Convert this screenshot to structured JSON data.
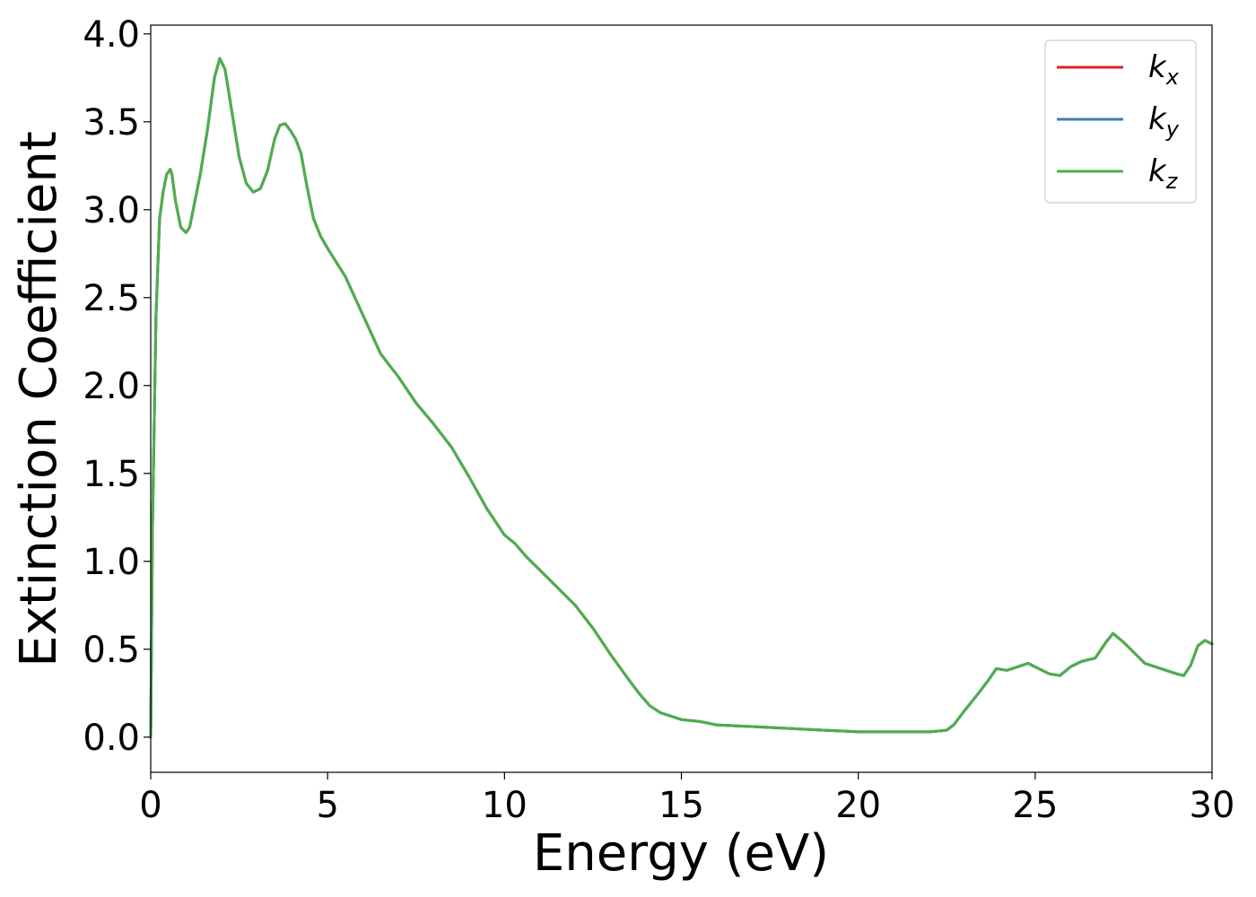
{
  "chart_data": {
    "type": "line",
    "title": "",
    "xlabel": "Energy (eV)",
    "ylabel": "Extinction Coefficient",
    "xlim": [
      0,
      30
    ],
    "ylim": [
      -0.2,
      4.05
    ],
    "xticks": [
      0,
      5,
      10,
      15,
      20,
      25,
      30
    ],
    "xtick_labels": [
      "0",
      "5",
      "10",
      "15",
      "20",
      "25",
      "30"
    ],
    "yticks": [
      0.0,
      0.5,
      1.0,
      1.5,
      2.0,
      2.5,
      3.0,
      3.5,
      4.0
    ],
    "ytick_labels": [
      "0.0",
      "0.5",
      "1.0",
      "1.5",
      "2.0",
      "2.5",
      "3.0",
      "3.5",
      "4.0"
    ],
    "grid": false,
    "legend_position": "top-right",
    "series": [
      {
        "name": "k",
        "subscript": "x",
        "color": "#d62728",
        "x": [
          0,
          0.05,
          0.15,
          0.25,
          0.35,
          0.45,
          0.55,
          0.6,
          0.7,
          0.85,
          1.0,
          1.1,
          1.2,
          1.4,
          1.6,
          1.8,
          1.95,
          2.1,
          2.3,
          2.5,
          2.7,
          2.9,
          3.1,
          3.3,
          3.5,
          3.65,
          3.8,
          3.95,
          4.1,
          4.25,
          4.4,
          4.6,
          4.8,
          5.0,
          5.5,
          6.0,
          6.5,
          7.0,
          7.5,
          8.0,
          8.5,
          9.0,
          9.5,
          10.0,
          10.3,
          10.6,
          11.0,
          11.5,
          12.0,
          12.5,
          13.0,
          13.5,
          13.8,
          14.1,
          14.4,
          14.7,
          15.0,
          15.5,
          16.0,
          16.5,
          17.0,
          17.5,
          18.0,
          18.5,
          19.0,
          19.5,
          20.0,
          20.5,
          21.0,
          21.5,
          22.0,
          22.3,
          22.5,
          22.7,
          23.0,
          23.4,
          23.7,
          23.9,
          24.2,
          24.5,
          24.8,
          25.1,
          25.4,
          25.7,
          26.0,
          26.3,
          26.7,
          27.0,
          27.2,
          27.5,
          27.8,
          28.1,
          28.4,
          28.7,
          29.0,
          29.2,
          29.4,
          29.6,
          29.8,
          30.0
        ],
        "y": [
          0.0,
          1.2,
          2.4,
          2.95,
          3.1,
          3.2,
          3.23,
          3.2,
          3.05,
          2.9,
          2.87,
          2.9,
          3.0,
          3.2,
          3.45,
          3.75,
          3.86,
          3.8,
          3.55,
          3.3,
          3.15,
          3.1,
          3.12,
          3.22,
          3.4,
          3.48,
          3.49,
          3.45,
          3.4,
          3.32,
          3.15,
          2.95,
          2.85,
          2.78,
          2.62,
          2.4,
          2.18,
          2.05,
          1.9,
          1.78,
          1.65,
          1.48,
          1.3,
          1.15,
          1.1,
          1.03,
          0.95,
          0.85,
          0.75,
          0.62,
          0.47,
          0.33,
          0.25,
          0.18,
          0.14,
          0.12,
          0.1,
          0.09,
          0.07,
          0.065,
          0.06,
          0.055,
          0.05,
          0.045,
          0.04,
          0.035,
          0.03,
          0.03,
          0.03,
          0.03,
          0.03,
          0.035,
          0.04,
          0.07,
          0.15,
          0.25,
          0.33,
          0.39,
          0.38,
          0.4,
          0.42,
          0.39,
          0.36,
          0.35,
          0.4,
          0.43,
          0.45,
          0.54,
          0.59,
          0.54,
          0.48,
          0.42,
          0.4,
          0.38,
          0.36,
          0.35,
          0.41,
          0.52,
          0.55,
          0.53
        ]
      },
      {
        "name": "k",
        "subscript": "y",
        "color": "#377eb8",
        "x": [
          0,
          0.05,
          0.15,
          0.25,
          0.35,
          0.45,
          0.55,
          0.6,
          0.7,
          0.85,
          1.0,
          1.1,
          1.2,
          1.4,
          1.6,
          1.8,
          1.95,
          2.1,
          2.3,
          2.5,
          2.7,
          2.9,
          3.1,
          3.3,
          3.5,
          3.65,
          3.8,
          3.95,
          4.1,
          4.25,
          4.4,
          4.6,
          4.8,
          5.0,
          5.5,
          6.0,
          6.5,
          7.0,
          7.5,
          8.0,
          8.5,
          9.0,
          9.5,
          10.0,
          10.3,
          10.6,
          11.0,
          11.5,
          12.0,
          12.5,
          13.0,
          13.5,
          13.8,
          14.1,
          14.4,
          14.7,
          15.0,
          15.5,
          16.0,
          16.5,
          17.0,
          17.5,
          18.0,
          18.5,
          19.0,
          19.5,
          20.0,
          20.5,
          21.0,
          21.5,
          22.0,
          22.3,
          22.5,
          22.7,
          23.0,
          23.4,
          23.7,
          23.9,
          24.2,
          24.5,
          24.8,
          25.1,
          25.4,
          25.7,
          26.0,
          26.3,
          26.7,
          27.0,
          27.2,
          27.5,
          27.8,
          28.1,
          28.4,
          28.7,
          29.0,
          29.2,
          29.4,
          29.6,
          29.8,
          30.0
        ],
        "y": [
          0.0,
          1.2,
          2.4,
          2.95,
          3.1,
          3.2,
          3.23,
          3.2,
          3.05,
          2.9,
          2.87,
          2.9,
          3.0,
          3.2,
          3.45,
          3.75,
          3.86,
          3.8,
          3.55,
          3.3,
          3.15,
          3.1,
          3.12,
          3.22,
          3.4,
          3.48,
          3.49,
          3.45,
          3.4,
          3.32,
          3.15,
          2.95,
          2.85,
          2.78,
          2.62,
          2.4,
          2.18,
          2.05,
          1.9,
          1.78,
          1.65,
          1.48,
          1.3,
          1.15,
          1.1,
          1.03,
          0.95,
          0.85,
          0.75,
          0.62,
          0.47,
          0.33,
          0.25,
          0.18,
          0.14,
          0.12,
          0.1,
          0.09,
          0.07,
          0.065,
          0.06,
          0.055,
          0.05,
          0.045,
          0.04,
          0.035,
          0.03,
          0.03,
          0.03,
          0.03,
          0.03,
          0.035,
          0.04,
          0.07,
          0.15,
          0.25,
          0.33,
          0.39,
          0.38,
          0.4,
          0.42,
          0.39,
          0.36,
          0.35,
          0.4,
          0.43,
          0.45,
          0.54,
          0.59,
          0.54,
          0.48,
          0.42,
          0.4,
          0.38,
          0.36,
          0.35,
          0.41,
          0.52,
          0.55,
          0.53
        ]
      },
      {
        "name": "k",
        "subscript": "z",
        "color": "#4daf4a",
        "x": [
          0,
          0.05,
          0.15,
          0.25,
          0.35,
          0.45,
          0.55,
          0.6,
          0.7,
          0.85,
          1.0,
          1.1,
          1.2,
          1.4,
          1.6,
          1.8,
          1.95,
          2.1,
          2.3,
          2.5,
          2.7,
          2.9,
          3.1,
          3.3,
          3.5,
          3.65,
          3.8,
          3.95,
          4.1,
          4.25,
          4.4,
          4.6,
          4.8,
          5.0,
          5.5,
          6.0,
          6.5,
          7.0,
          7.5,
          8.0,
          8.5,
          9.0,
          9.5,
          10.0,
          10.3,
          10.6,
          11.0,
          11.5,
          12.0,
          12.5,
          13.0,
          13.5,
          13.8,
          14.1,
          14.4,
          14.7,
          15.0,
          15.5,
          16.0,
          16.5,
          17.0,
          17.5,
          18.0,
          18.5,
          19.0,
          19.5,
          20.0,
          20.5,
          21.0,
          21.5,
          22.0,
          22.3,
          22.5,
          22.7,
          23.0,
          23.4,
          23.7,
          23.9,
          24.2,
          24.5,
          24.8,
          25.1,
          25.4,
          25.7,
          26.0,
          26.3,
          26.7,
          27.0,
          27.2,
          27.5,
          27.8,
          28.1,
          28.4,
          28.7,
          29.0,
          29.2,
          29.4,
          29.6,
          29.8,
          30.0
        ],
        "y": [
          0.0,
          1.2,
          2.4,
          2.95,
          3.1,
          3.2,
          3.23,
          3.2,
          3.05,
          2.9,
          2.87,
          2.9,
          3.0,
          3.2,
          3.45,
          3.75,
          3.86,
          3.8,
          3.55,
          3.3,
          3.15,
          3.1,
          3.12,
          3.22,
          3.4,
          3.48,
          3.49,
          3.45,
          3.4,
          3.32,
          3.15,
          2.95,
          2.85,
          2.78,
          2.62,
          2.4,
          2.18,
          2.05,
          1.9,
          1.78,
          1.65,
          1.48,
          1.3,
          1.15,
          1.1,
          1.03,
          0.95,
          0.85,
          0.75,
          0.62,
          0.47,
          0.33,
          0.25,
          0.18,
          0.14,
          0.12,
          0.1,
          0.09,
          0.07,
          0.065,
          0.06,
          0.055,
          0.05,
          0.045,
          0.04,
          0.035,
          0.03,
          0.03,
          0.03,
          0.03,
          0.03,
          0.035,
          0.04,
          0.07,
          0.15,
          0.25,
          0.33,
          0.39,
          0.38,
          0.4,
          0.42,
          0.39,
          0.36,
          0.35,
          0.4,
          0.43,
          0.45,
          0.54,
          0.59,
          0.54,
          0.48,
          0.42,
          0.4,
          0.38,
          0.36,
          0.35,
          0.41,
          0.52,
          0.55,
          0.53
        ]
      }
    ]
  }
}
